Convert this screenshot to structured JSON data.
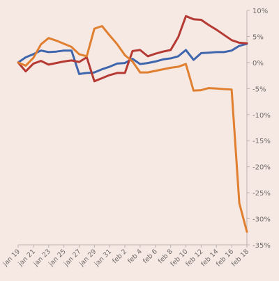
{
  "chart_data": {
    "type": "line",
    "title": "",
    "xlabel": "",
    "ylabel": "",
    "ylim": [
      -35,
      10
    ],
    "grid": false,
    "legend": "none",
    "y_ticks": [
      {
        "value": 10,
        "label": "10%"
      },
      {
        "value": 5,
        "label": "5%"
      },
      {
        "value": 0,
        "label": "0%"
      },
      {
        "value": -5,
        "label": "-5%"
      },
      {
        "value": -10,
        "label": "-10%"
      },
      {
        "value": -15,
        "label": "-15%"
      },
      {
        "value": -20,
        "label": "-20%"
      },
      {
        "value": -25,
        "label": "-25%"
      },
      {
        "value": -30,
        "label": "-30%"
      },
      {
        "value": -35,
        "label": "-35%"
      }
    ],
    "x_ticks": [
      {
        "index": 0,
        "label": "jan 19"
      },
      {
        "index": 2,
        "label": "jan 21"
      },
      {
        "index": 4,
        "label": "jan 23"
      },
      {
        "index": 6,
        "label": "jan 25"
      },
      {
        "index": 8,
        "label": "jan 27"
      },
      {
        "index": 10,
        "label": "jan 29"
      },
      {
        "index": 12,
        "label": "jan 31"
      },
      {
        "index": 14,
        "label": "feb 2"
      },
      {
        "index": 16,
        "label": "feb 4"
      },
      {
        "index": 18,
        "label": "feb 6"
      },
      {
        "index": 20,
        "label": "feb 8"
      },
      {
        "index": 22,
        "label": "feb 10"
      },
      {
        "index": 24,
        "label": "feb 12"
      },
      {
        "index": 26,
        "label": "feb 14"
      },
      {
        "index": 28,
        "label": "feb 16"
      },
      {
        "index": 30,
        "label": "feb 18"
      }
    ],
    "categories": [
      "jan 19",
      "jan 20",
      "jan 21",
      "jan 22",
      "jan 23",
      "jan 24",
      "jan 25",
      "jan 26",
      "jan 27",
      "jan 28",
      "jan 29",
      "jan 30",
      "jan 31",
      "feb 1",
      "feb 2",
      "feb 3",
      "feb 4",
      "feb 5",
      "feb 6",
      "feb 7",
      "feb 8",
      "feb 9",
      "feb 10",
      "feb 11",
      "feb 12",
      "feb 13",
      "feb 14",
      "feb 15",
      "feb 16",
      "feb 17",
      "feb 18"
    ],
    "series": [
      {
        "color": "#3f66ad",
        "values": [
          0.0,
          1.0,
          1.6,
          2.3,
          2.0,
          2.1,
          2.3,
          2.3,
          -2.2,
          -2.0,
          -1.9,
          -1.3,
          -0.8,
          -0.2,
          -0.1,
          0.7,
          -0.3,
          -0.1,
          0.2,
          0.6,
          0.8,
          1.2,
          2.4,
          0.5,
          1.8,
          1.9,
          2.0,
          2.0,
          2.3,
          3.2,
          3.6
        ]
      },
      {
        "color": "#b53a34",
        "values": [
          0.0,
          -1.7,
          -0.2,
          0.3,
          -0.4,
          -0.1,
          0.2,
          0.4,
          0.1,
          1.0,
          -3.6,
          -3.0,
          -2.4,
          -2.0,
          -2.0,
          2.2,
          2.4,
          1.2,
          1.7,
          2.1,
          2.4,
          4.9,
          8.9,
          8.3,
          8.2,
          7.2,
          6.3,
          5.3,
          4.3,
          3.8,
          3.7
        ]
      },
      {
        "color": "#e07f2f",
        "values": [
          0.0,
          -0.6,
          0.9,
          3.5,
          4.7,
          4.2,
          3.6,
          3.0,
          1.6,
          1.2,
          6.5,
          7.0,
          5.2,
          3.5,
          1.4,
          0.2,
          -1.9,
          -1.9,
          -1.6,
          -1.3,
          -1.0,
          -0.8,
          -0.3,
          -5.4,
          -5.3,
          -4.9,
          -5.0,
          -5.1,
          -5.2,
          -27.0,
          -32.5
        ]
      }
    ]
  }
}
